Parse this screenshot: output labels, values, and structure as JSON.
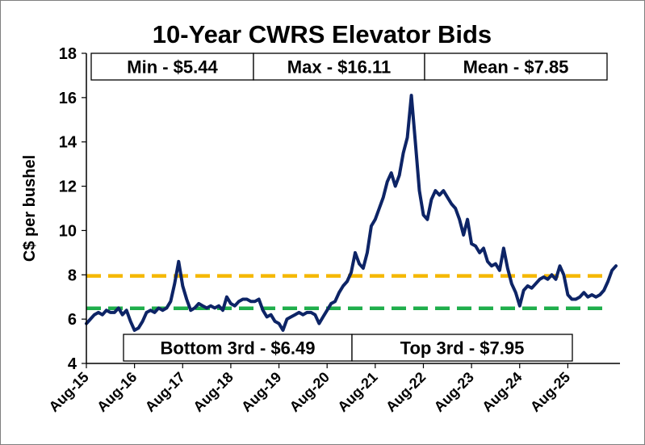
{
  "chart_data": {
    "type": "line",
    "title": "10-Year CWRS Elevator Bids",
    "ylabel": "C$ per bushel",
    "xlabel": "",
    "ylim": [
      4,
      18
    ],
    "yticks": [
      "4",
      "6",
      "8",
      "10",
      "12",
      "14",
      "16",
      "18"
    ],
    "xlim": [
      "2015-08",
      "2026-09"
    ],
    "xticks": [
      {
        "label": "Aug-15",
        "date": "2015-08"
      },
      {
        "label": "Aug-16",
        "date": "2016-08"
      },
      {
        "label": "Aug-17",
        "date": "2017-08"
      },
      {
        "label": "Aug-18",
        "date": "2018-08"
      },
      {
        "label": "Aug-19",
        "date": "2019-08"
      },
      {
        "label": "Aug-20",
        "date": "2020-08"
      },
      {
        "label": "Aug-21",
        "date": "2021-08"
      },
      {
        "label": "Aug-22",
        "date": "2022-08"
      },
      {
        "label": "Aug-23",
        "date": "2023-08"
      },
      {
        "label": "Aug-24",
        "date": "2024-08"
      },
      {
        "label": "Aug-25",
        "date": "2025-08"
      }
    ],
    "series": [
      {
        "color": "#0d2466",
        "points": [
          [
            "2015-08",
            5.8
          ],
          [
            "2015-09",
            6.0
          ],
          [
            "2015-10",
            6.2
          ],
          [
            "2015-11",
            6.3
          ],
          [
            "2015-12",
            6.2
          ],
          [
            "2016-01",
            6.4
          ],
          [
            "2016-02",
            6.3
          ],
          [
            "2016-03",
            6.3
          ],
          [
            "2016-04",
            6.5
          ],
          [
            "2016-05",
            6.2
          ],
          [
            "2016-06",
            6.4
          ],
          [
            "2016-07",
            5.9
          ],
          [
            "2016-08",
            5.5
          ],
          [
            "2016-09",
            5.6
          ],
          [
            "2016-10",
            5.9
          ],
          [
            "2016-11",
            6.3
          ],
          [
            "2016-12",
            6.4
          ],
          [
            "2017-01",
            6.3
          ],
          [
            "2017-02",
            6.5
          ],
          [
            "2017-03",
            6.4
          ],
          [
            "2017-04",
            6.5
          ],
          [
            "2017-05",
            6.8
          ],
          [
            "2017-06",
            7.6
          ],
          [
            "2017-07",
            8.6
          ],
          [
            "2017-08",
            7.5
          ],
          [
            "2017-09",
            6.9
          ],
          [
            "2017-10",
            6.4
          ],
          [
            "2017-11",
            6.5
          ],
          [
            "2017-12",
            6.7
          ],
          [
            "2018-01",
            6.6
          ],
          [
            "2018-02",
            6.5
          ],
          [
            "2018-03",
            6.6
          ],
          [
            "2018-04",
            6.5
          ],
          [
            "2018-05",
            6.6
          ],
          [
            "2018-06",
            6.4
          ],
          [
            "2018-07",
            7.0
          ],
          [
            "2018-08",
            6.7
          ],
          [
            "2018-09",
            6.6
          ],
          [
            "2018-10",
            6.8
          ],
          [
            "2018-11",
            6.9
          ],
          [
            "2018-12",
            6.9
          ],
          [
            "2019-01",
            6.8
          ],
          [
            "2019-02",
            6.8
          ],
          [
            "2019-03",
            6.9
          ],
          [
            "2019-04",
            6.4
          ],
          [
            "2019-05",
            6.1
          ],
          [
            "2019-06",
            6.2
          ],
          [
            "2019-07",
            5.9
          ],
          [
            "2019-08",
            5.8
          ],
          [
            "2019-09",
            5.5
          ],
          [
            "2019-10",
            6.0
          ],
          [
            "2019-11",
            6.1
          ],
          [
            "2019-12",
            6.2
          ],
          [
            "2020-01",
            6.3
          ],
          [
            "2020-02",
            6.2
          ],
          [
            "2020-03",
            6.3
          ],
          [
            "2020-04",
            6.3
          ],
          [
            "2020-05",
            6.2
          ],
          [
            "2020-06",
            5.8
          ],
          [
            "2020-07",
            6.1
          ],
          [
            "2020-08",
            6.4
          ],
          [
            "2020-09",
            6.7
          ],
          [
            "2020-10",
            6.8
          ],
          [
            "2020-11",
            7.2
          ],
          [
            "2020-12",
            7.5
          ],
          [
            "2021-01",
            7.7
          ],
          [
            "2021-02",
            8.1
          ],
          [
            "2021-03",
            9.0
          ],
          [
            "2021-04",
            8.5
          ],
          [
            "2021-05",
            8.3
          ],
          [
            "2021-06",
            9.0
          ],
          [
            "2021-07",
            10.2
          ],
          [
            "2021-08",
            10.5
          ],
          [
            "2021-09",
            11.0
          ],
          [
            "2021-10",
            11.5
          ],
          [
            "2021-11",
            12.2
          ],
          [
            "2021-12",
            12.6
          ],
          [
            "2022-01",
            12.0
          ],
          [
            "2022-02",
            12.5
          ],
          [
            "2022-03",
            13.5
          ],
          [
            "2022-04",
            14.2
          ],
          [
            "2022-05",
            16.1
          ],
          [
            "2022-06",
            14.0
          ],
          [
            "2022-07",
            11.8
          ],
          [
            "2022-08",
            10.7
          ],
          [
            "2022-09",
            10.5
          ],
          [
            "2022-10",
            11.4
          ],
          [
            "2022-11",
            11.8
          ],
          [
            "2022-12",
            11.6
          ],
          [
            "2023-01",
            11.8
          ],
          [
            "2023-02",
            11.5
          ],
          [
            "2023-03",
            11.2
          ],
          [
            "2023-04",
            11.0
          ],
          [
            "2023-05",
            10.5
          ],
          [
            "2023-06",
            9.8
          ],
          [
            "2023-07",
            10.5
          ],
          [
            "2023-08",
            9.4
          ],
          [
            "2023-09",
            9.3
          ],
          [
            "2023-10",
            9.0
          ],
          [
            "2023-11",
            9.2
          ],
          [
            "2023-12",
            8.6
          ],
          [
            "2024-01",
            8.4
          ],
          [
            "2024-02",
            8.5
          ],
          [
            "2024-03",
            8.2
          ],
          [
            "2024-04",
            9.2
          ],
          [
            "2024-05",
            8.3
          ],
          [
            "2024-06",
            7.6
          ],
          [
            "2024-07",
            7.2
          ],
          [
            "2024-08",
            6.6
          ],
          [
            "2024-09",
            7.3
          ],
          [
            "2024-10",
            7.5
          ],
          [
            "2024-11",
            7.4
          ],
          [
            "2024-12",
            7.6
          ],
          [
            "2025-01",
            7.8
          ],
          [
            "2025-02",
            7.9
          ],
          [
            "2025-03",
            7.8
          ],
          [
            "2025-04",
            8.0
          ],
          [
            "2025-05",
            7.8
          ],
          [
            "2025-06",
            8.4
          ],
          [
            "2025-07",
            8.0
          ],
          [
            "2025-08",
            7.1
          ],
          [
            "2025-09",
            6.9
          ],
          [
            "2025-10",
            6.9
          ],
          [
            "2025-11",
            7.0
          ],
          [
            "2025-12",
            7.2
          ],
          [
            "2026-01",
            7.0
          ],
          [
            "2026-02",
            7.1
          ],
          [
            "2026-03",
            7.0
          ],
          [
            "2026-04",
            7.1
          ],
          [
            "2026-05",
            7.3
          ],
          [
            "2026-06",
            7.7
          ],
          [
            "2026-07",
            8.2
          ],
          [
            "2026-08",
            8.4
          ]
        ]
      }
    ],
    "reference_lines": [
      {
        "value": 7.95,
        "color": "#f5b800",
        "style": "dashed"
      },
      {
        "value": 6.49,
        "color": "#1fae4b",
        "style": "dashed"
      }
    ],
    "annotations": {
      "top_row": [
        "Min - $5.44",
        "Max - $16.11",
        "Mean - $7.85"
      ],
      "bottom_row": [
        "Bottom 3rd - $6.49",
        "Top 3rd - $7.95"
      ]
    },
    "grid": false,
    "legend": "none"
  }
}
